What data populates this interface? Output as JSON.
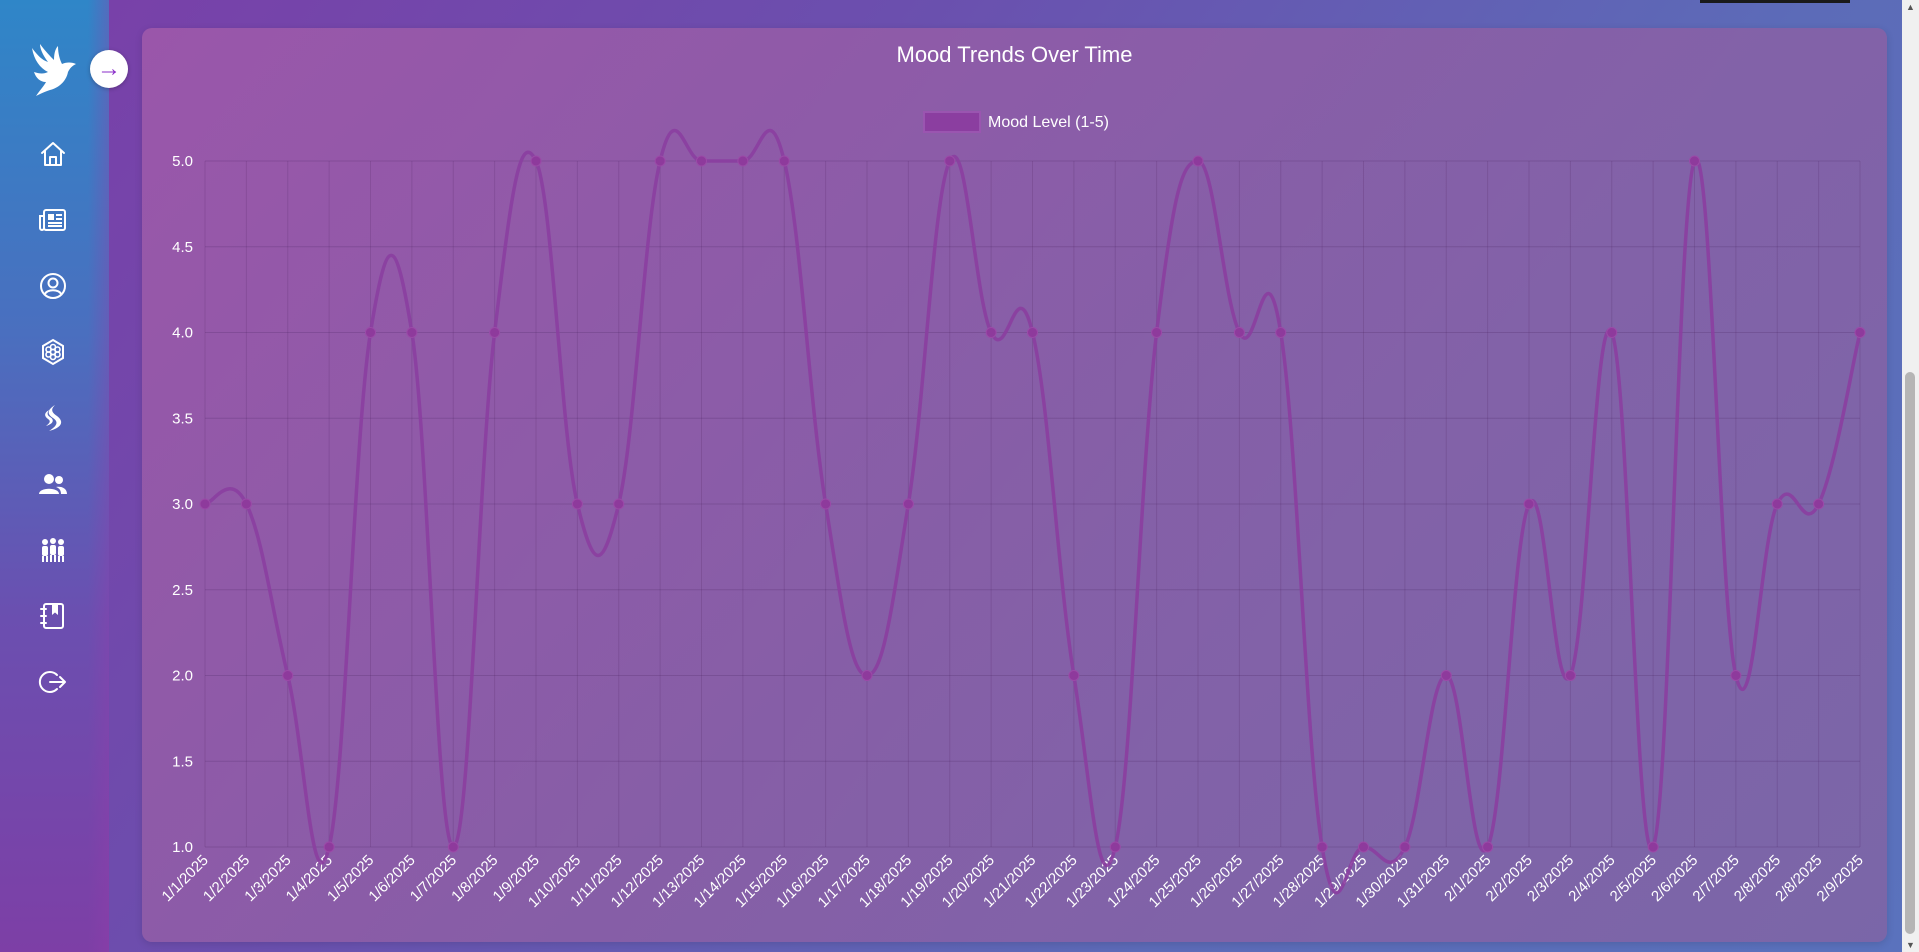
{
  "sidebar": {
    "logo_icon": "dove-icon",
    "toggle_icon": "arrow-right-icon",
    "toggle_label": "→",
    "items": [
      {
        "name": "home",
        "icon": "home-icon"
      },
      {
        "name": "news",
        "icon": "newspaper-icon"
      },
      {
        "name": "profile",
        "icon": "user-circle-icon"
      },
      {
        "name": "mood",
        "icon": "hexagon-flower-icon"
      },
      {
        "name": "activities",
        "icon": "flame-icon"
      },
      {
        "name": "community",
        "icon": "users-icon"
      },
      {
        "name": "groups",
        "icon": "group-icon"
      },
      {
        "name": "journal",
        "icon": "journal-bookmark-icon"
      },
      {
        "name": "logout",
        "icon": "logout-icon"
      }
    ],
    "icon_color": "#ffffff"
  },
  "chart": {
    "title": "Mood Trends Over Time"
  },
  "chart_data": {
    "type": "line",
    "title": "Mood Trends Over Time",
    "legend": {
      "label": "Mood Level (1-5)",
      "placement": "top"
    },
    "xlabel": "",
    "ylabel": "",
    "ylim": [
      1.0,
      5.0
    ],
    "yticks": [
      "1.0",
      "1.5",
      "2.0",
      "2.5",
      "3.0",
      "3.5",
      "4.0",
      "4.5",
      "5.0"
    ],
    "grid": true,
    "color": "#8b3ea0",
    "categories": [
      "1/1/2025",
      "1/2/2025",
      "1/3/2025",
      "1/4/2025",
      "1/5/2025",
      "1/6/2025",
      "1/7/2025",
      "1/8/2025",
      "1/9/2025",
      "1/10/2025",
      "1/11/2025",
      "1/12/2025",
      "1/13/2025",
      "1/14/2025",
      "1/15/2025",
      "1/16/2025",
      "1/17/2025",
      "1/18/2025",
      "1/19/2025",
      "1/20/2025",
      "1/21/2025",
      "1/22/2025",
      "1/23/2025",
      "1/24/2025",
      "1/25/2025",
      "1/26/2025",
      "1/27/2025",
      "1/28/2025",
      "1/29/2025",
      "1/30/2025",
      "1/31/2025",
      "2/1/2025",
      "2/2/2025",
      "2/3/2025",
      "2/4/2025",
      "2/5/2025",
      "2/6/2025",
      "2/7/2025",
      "2/8/2025",
      "2/8/2025",
      "2/9/2025"
    ],
    "series": [
      {
        "name": "Mood Level (1-5)",
        "values": [
          3,
          3,
          2,
          1,
          4,
          4,
          1,
          4,
          5,
          3,
          3,
          5,
          5,
          5,
          5,
          3,
          2,
          3,
          5,
          4,
          4,
          2,
          1,
          4,
          5,
          4,
          4,
          1,
          1,
          1,
          2,
          1,
          3,
          2,
          4,
          1,
          5,
          2,
          3,
          3,
          4
        ]
      }
    ]
  }
}
